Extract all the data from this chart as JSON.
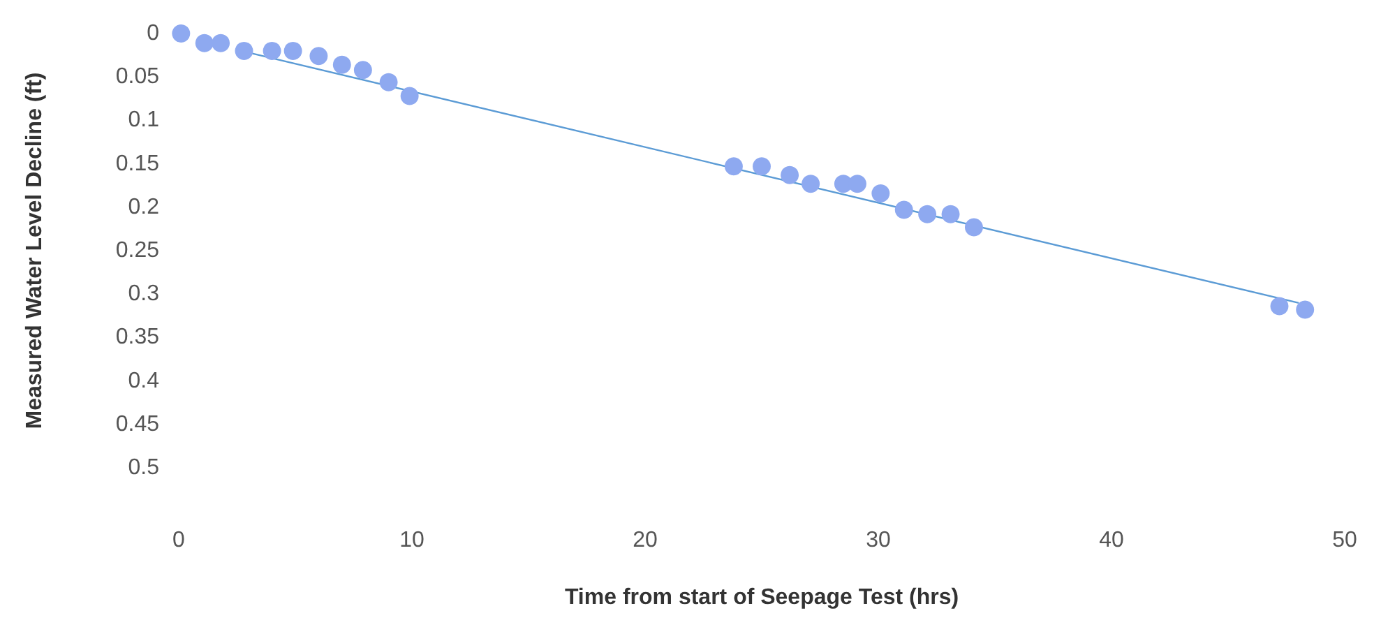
{
  "chart_data": {
    "type": "scatter",
    "xlabel": "Time from start of Seepage Test (hrs)",
    "ylabel": "Measured Water Level Decline (ft)",
    "xlim": [
      0,
      50
    ],
    "xticks": [
      0,
      10,
      20,
      30,
      40,
      50
    ],
    "ylim": [
      0.5,
      0
    ],
    "yticks": [
      0,
      0.05,
      0.1,
      0.15,
      0.2,
      0.25,
      0.3,
      0.35,
      0.4,
      0.45,
      0.5
    ],
    "grid": false,
    "series": [
      {
        "color": "#8ea9f0",
        "marker": "circle",
        "x": [
          0.1,
          1.1,
          1.8,
          2.8,
          4.0,
          4.9,
          6.0,
          7.0,
          7.9,
          9.0,
          9.9,
          23.8,
          25.0,
          26.2,
          27.1,
          28.5,
          29.1,
          30.1,
          31.1,
          32.1,
          33.1,
          34.1,
          47.2,
          48.3
        ],
        "values": [
          0,
          0.011,
          0.011,
          0.02,
          0.02,
          0.02,
          0.026,
          0.036,
          0.042,
          0.056,
          0.072,
          0.153,
          0.153,
          0.163,
          0.173,
          0.173,
          0.173,
          0.184,
          0.203,
          0.208,
          0.208,
          0.223,
          0.314,
          0.318
        ]
      },
      {
        "type": "line",
        "color": "#5b9bd5",
        "line_style": "solid",
        "x": [
          3,
          48
        ],
        "values": [
          0.022,
          0.31
        ]
      }
    ]
  }
}
